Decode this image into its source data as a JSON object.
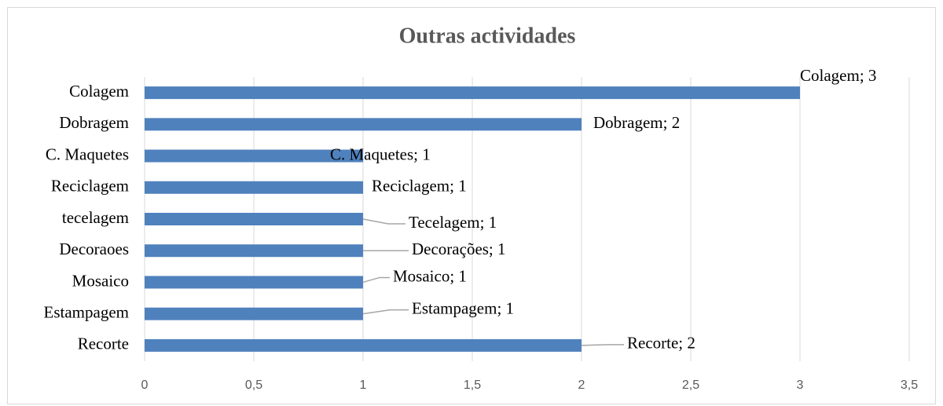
{
  "chart_data": {
    "type": "barh",
    "title": "Outras actividades",
    "categories": [
      "Colagem",
      "Dobragem",
      "C. Maquetes",
      "Reciclagem",
      "tecelagem",
      "Decoraoes",
      "Mosaico",
      "Estampagem",
      "Recorte"
    ],
    "values": [
      3,
      2,
      1,
      1,
      1,
      1,
      1,
      1,
      2
    ],
    "value_labels": [
      "Colagem; 3",
      "Dobragem; 2",
      "C. Maquetes; 1",
      "Reciclagem; 1",
      "Tecelagem; 1",
      "Decorações; 1",
      "Mosaico; 1",
      "Estampagem; 1",
      "Recorte; 2"
    ],
    "color": "#4f81bd",
    "xlim": [
      0,
      3.5
    ],
    "xticks": [
      0,
      {
        "value": 0.5,
        "label": "0,5"
      },
      1,
      {
        "value": 1.5,
        "label": "1,5"
      },
      2,
      {
        "value": 2.5,
        "label": "2,5"
      },
      3,
      {
        "value": 3.5,
        "label": "3,5"
      }
    ],
    "grid": true
  }
}
